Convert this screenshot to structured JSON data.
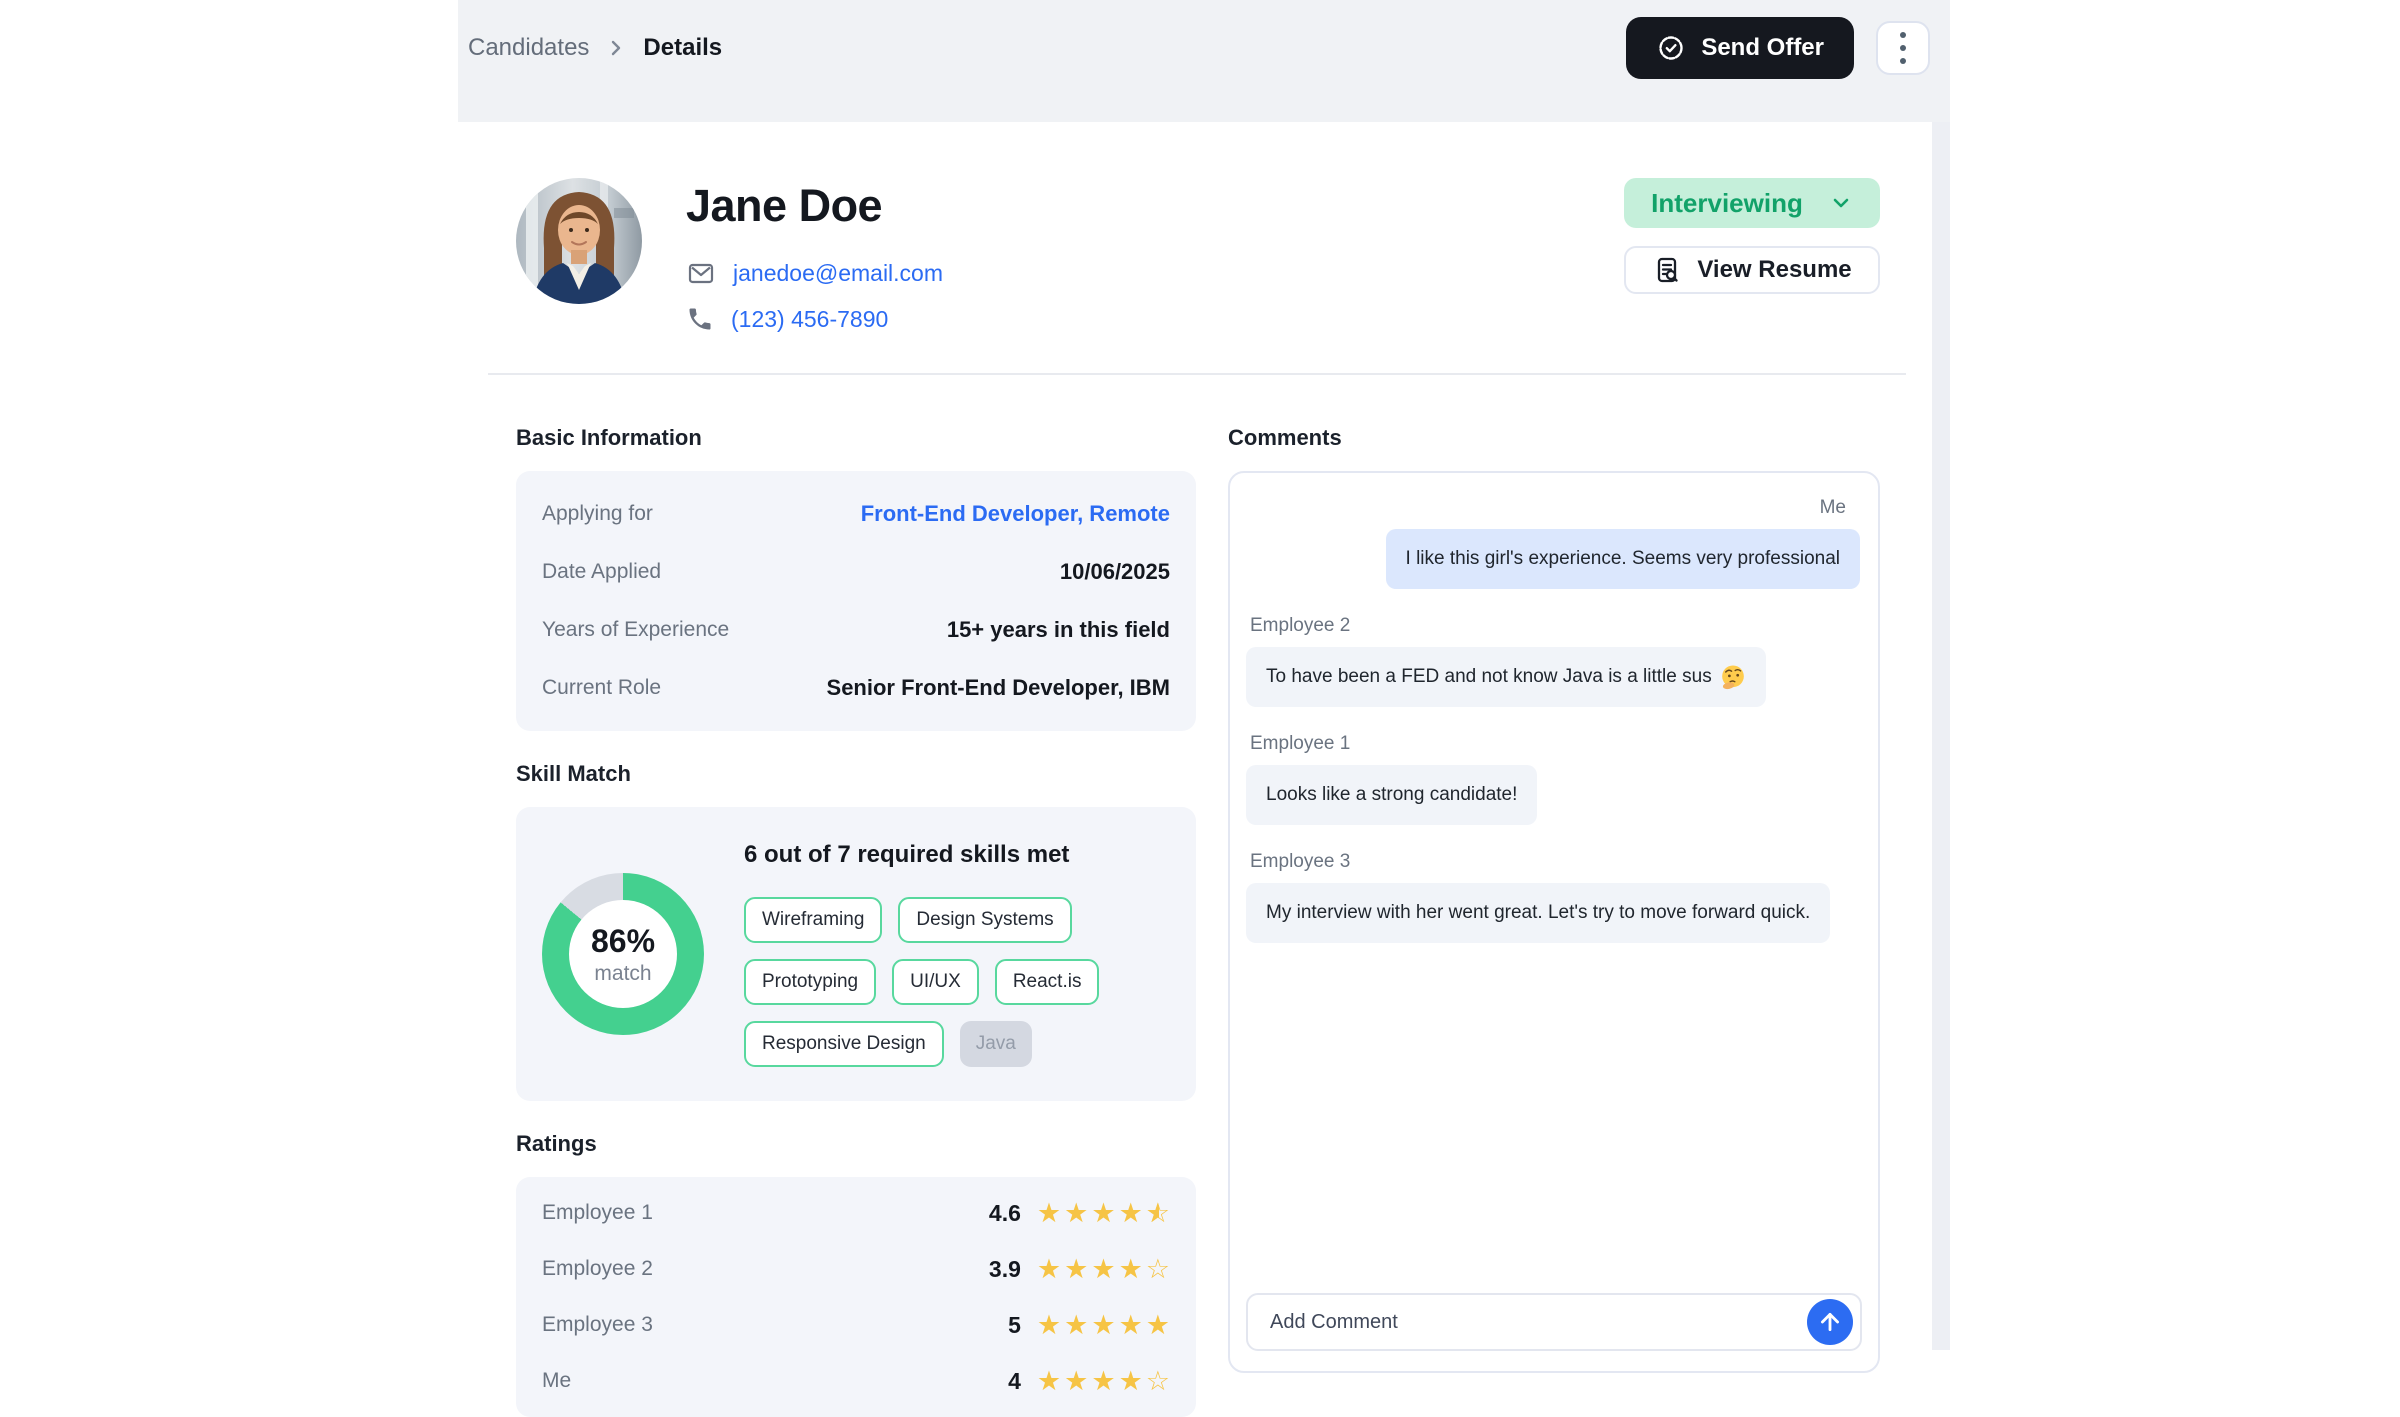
{
  "breadcrumb": {
    "parent": "Candidates",
    "separator": ">",
    "current": "Details"
  },
  "header": {
    "send_offer_label": "Send Offer"
  },
  "profile": {
    "name": "Jane Doe",
    "email": "janedoe@email.com",
    "phone": "(123) 456-7890",
    "status_label": "Interviewing",
    "view_resume_label": "View Resume"
  },
  "basic_info": {
    "title": "Basic Information",
    "rows": [
      {
        "label": "Applying for",
        "value": "Front-End Developer, Remote",
        "is_link": true
      },
      {
        "label": "Date Applied",
        "value": "10/06/2025",
        "is_link": false
      },
      {
        "label": "Years of Experience",
        "value": "15+ years in this field",
        "is_link": false
      },
      {
        "label": "Current Role",
        "value": "Senior Front-End Developer, IBM",
        "is_link": false
      }
    ]
  },
  "skill_match": {
    "title": "Skill Match",
    "percent": "86%",
    "percent_value": 86,
    "percent_sublabel": "match",
    "headline": "6 out of 7 required skills met",
    "skills_met": [
      "Wireframing",
      "Design Systems",
      "Prototyping",
      "UI/UX",
      "React.is",
      "Responsive Design"
    ],
    "skills_missing": [
      "Java"
    ]
  },
  "ratings": {
    "title": "Ratings",
    "rows": [
      {
        "name": "Employee 1",
        "value": "4.6",
        "stars": {
          "full": 4,
          "half": 1,
          "empty": 0
        }
      },
      {
        "name": "Employee 2",
        "value": "3.9",
        "stars": {
          "full": 4,
          "half": 0,
          "empty": 1
        }
      },
      {
        "name": "Employee 3",
        "value": "5",
        "stars": {
          "full": 5,
          "half": 0,
          "empty": 0
        }
      },
      {
        "name": "Me",
        "value": "4",
        "stars": {
          "full": 4,
          "half": 0,
          "empty": 1
        }
      }
    ]
  },
  "comments": {
    "title": "Comments",
    "items": [
      {
        "author": "Me",
        "text": "I like this girl's experience. Seems very professional",
        "variant": "self"
      },
      {
        "author": "Employee 2",
        "text": "To have been a FED and not know Java is a little sus",
        "emoji": "🤔",
        "variant": "other"
      },
      {
        "author": "Employee 1",
        "text": "Looks like a strong candidate!",
        "variant": "other"
      },
      {
        "author": "Employee 3",
        "text": "My interview with her went great. Let's try to move forward quick.",
        "variant": "other"
      }
    ],
    "input_placeholder": "Add Comment"
  },
  "colors": {
    "header_band": "#f0f2f5",
    "panel_bg": "#f3f5fa",
    "send_offer_bg": "#15181f",
    "status_bg": "#c5efda",
    "status_text": "#12a269",
    "link_blue": "#2b6bf3",
    "donut_green": "#44d08f",
    "donut_rest": "#d8dce3",
    "chip_border_green": "#58d89e",
    "chip_missing_bg": "#d4d8e1",
    "star_yellow": "#f6c445",
    "self_bubble": "#dbe7fd",
    "other_bubble": "#f1f4f9",
    "send_button_blue": "#2c6cf2"
  }
}
